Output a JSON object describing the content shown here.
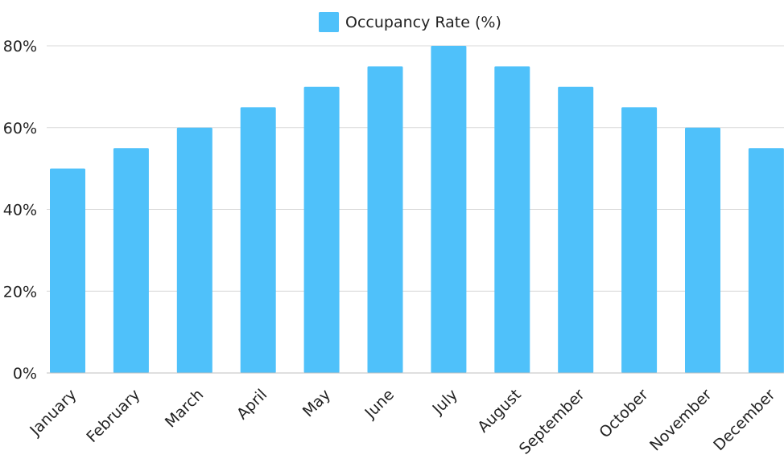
{
  "chart_data": {
    "type": "bar",
    "categories": [
      "January",
      "February",
      "March",
      "April",
      "May",
      "June",
      "July",
      "August",
      "September",
      "October",
      "November",
      "December"
    ],
    "series": [
      {
        "name": "Occupancy Rate (%)",
        "values": [
          50,
          55,
          60,
          65,
          70,
          75,
          80,
          75,
          70,
          65,
          60,
          55
        ],
        "color": "#4fc1fa"
      }
    ],
    "title": "",
    "xlabel": "",
    "ylabel": "",
    "ylim": [
      0,
      80
    ],
    "yticks": [
      "0%",
      "20%",
      "40%",
      "60%",
      "80%"
    ],
    "grid": true,
    "legend": "top-center"
  }
}
